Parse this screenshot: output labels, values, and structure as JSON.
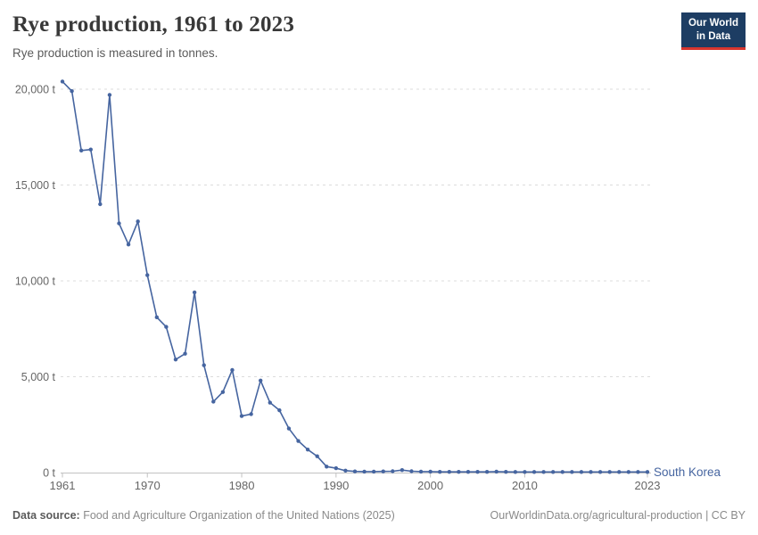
{
  "header": {
    "title": "Rye production, 1961 to 2023",
    "subtitle": "Rye production is measured in tonnes.",
    "logo_line1": "Our World",
    "logo_line2": "in Data"
  },
  "chart_data": {
    "type": "line",
    "title": "Rye production, 1961 to 2023",
    "subtitle": "Rye production is measured in tonnes.",
    "unit": "t",
    "xlim": [
      1961,
      2023
    ],
    "ylim": [
      0,
      20500
    ],
    "grid": "horizontal-dashed",
    "legend_position": "line-end-label",
    "x_ticks": [
      {
        "year": 1961,
        "label": "1961"
      },
      {
        "year": 1970,
        "label": "1970"
      },
      {
        "year": 1980,
        "label": "1980"
      },
      {
        "year": 1990,
        "label": "1990"
      },
      {
        "year": 2000,
        "label": "2000"
      },
      {
        "year": 2010,
        "label": "2010"
      },
      {
        "year": 2023,
        "label": "2023"
      }
    ],
    "y_ticks": [
      {
        "value": 0,
        "label": "0 t"
      },
      {
        "value": 5000,
        "label": "5,000 t"
      },
      {
        "value": 10000,
        "label": "10,000 t"
      },
      {
        "value": 15000,
        "label": "15,000 t"
      },
      {
        "value": 20000,
        "label": "20,000 t"
      }
    ],
    "series": [
      {
        "name": "South Korea",
        "color": "#4665A0",
        "years": [
          1961,
          1962,
          1963,
          1964,
          1965,
          1966,
          1967,
          1968,
          1969,
          1970,
          1971,
          1972,
          1973,
          1974,
          1975,
          1976,
          1977,
          1978,
          1979,
          1980,
          1981,
          1982,
          1983,
          1984,
          1985,
          1986,
          1987,
          1988,
          1989,
          1990,
          1991,
          1992,
          1993,
          1994,
          1995,
          1996,
          1997,
          1998,
          1999,
          2000,
          2001,
          2002,
          2003,
          2004,
          2005,
          2006,
          2007,
          2008,
          2009,
          2010,
          2011,
          2012,
          2013,
          2014,
          2015,
          2016,
          2017,
          2018,
          2019,
          2020,
          2021,
          2022,
          2023
        ],
        "values": [
          20400,
          19900,
          16800,
          16850,
          14000,
          19700,
          13000,
          11900,
          13100,
          10300,
          8100,
          7600,
          5900,
          6200,
          9400,
          5600,
          3700,
          4200,
          5350,
          2950,
          3050,
          4800,
          3650,
          3250,
          2300,
          1650,
          1200,
          850,
          310,
          230,
          100,
          60,
          50,
          50,
          60,
          70,
          130,
          70,
          50,
          50,
          40,
          40,
          40,
          40,
          40,
          40,
          50,
          40,
          30,
          30,
          30,
          30,
          30,
          30,
          30,
          30,
          30,
          30,
          30,
          30,
          30,
          30,
          30
        ]
      }
    ]
  },
  "footer": {
    "source_label": "Data source:",
    "source_text": "Food and Agriculture Organization of the United Nations (2025)",
    "link_text": "OurWorldinData.org/agricultural-production | CC BY"
  },
  "colors": {
    "line": "#4665A0",
    "grid": "#dcdcdc",
    "axis": "#c2c2c2",
    "tick_text": "#666666",
    "logo_bg": "#1d3d63",
    "logo_red": "#d8352e"
  }
}
